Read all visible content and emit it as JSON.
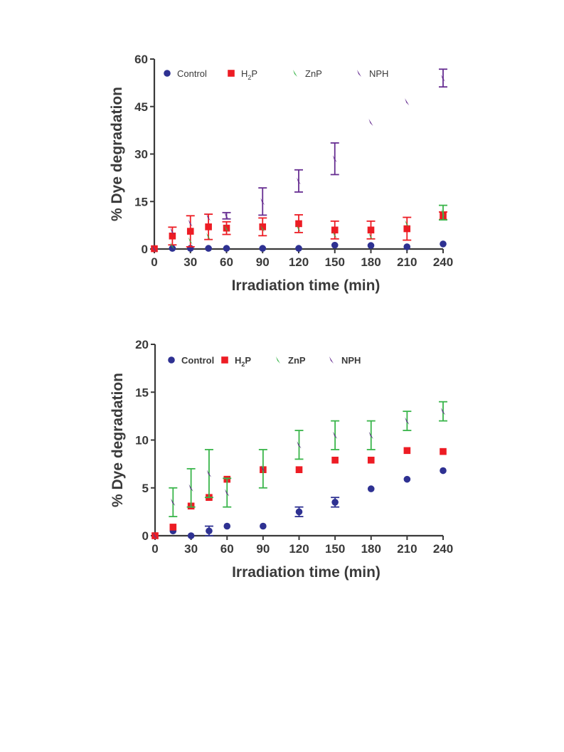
{
  "chart_data": [
    {
      "type": "scatter",
      "title": "",
      "xlabel": "Irradiation time (min)",
      "ylabel": "% Dye degradation",
      "xlim": [
        0,
        240
      ],
      "ylim": [
        0,
        60
      ],
      "x_ticks": [
        0,
        30,
        60,
        90,
        120,
        150,
        180,
        210,
        240
      ],
      "y_ticks": [
        0,
        15,
        30,
        45,
        60
      ],
      "grid": false,
      "legend_position": "top",
      "legend_bold": false,
      "series": [
        {
          "name": "Control",
          "marker": "circle",
          "color": "#2e3192",
          "x": [
            0,
            15,
            30,
            45,
            60,
            90,
            120,
            150,
            180,
            210,
            240
          ],
          "y": [
            0.1,
            0.2,
            0.2,
            0.2,
            0.2,
            0.2,
            0.2,
            1.2,
            1.1,
            0.7,
            1.6
          ],
          "err": [
            0,
            0,
            0,
            0,
            0,
            0,
            0,
            0,
            0,
            0,
            0
          ]
        },
        {
          "name": "H2P",
          "marker": "square",
          "color": "#ed1c24",
          "x": [
            0,
            15,
            30,
            45,
            60,
            90,
            120,
            150,
            180,
            210,
            240
          ],
          "y": [
            0.1,
            4.1,
            5.6,
            7.0,
            6.6,
            7.0,
            8.0,
            6.0,
            6.0,
            6.4,
            10.5
          ],
          "err": [
            0,
            2.8,
            4.9,
            4.0,
            2.0,
            2.8,
            2.8,
            2.8,
            2.8,
            3.6,
            1.2
          ]
        },
        {
          "name": "ZnP",
          "marker": "wedge",
          "color": "#39b54a",
          "x": [
            0,
            15,
            30,
            45,
            60,
            90,
            120,
            150,
            180,
            210,
            240
          ],
          "y": [
            0.1,
            1.0,
            2.6,
            4.0,
            6.5,
            6.5,
            6.5,
            4.5,
            4.0,
            8.0,
            11.5
          ],
          "err": [
            0,
            0,
            0,
            0,
            0,
            0,
            0,
            0,
            0,
            0,
            2.3
          ]
        },
        {
          "name": "NPH",
          "marker": "wedge",
          "color": "#662d91",
          "x": [
            0,
            15,
            30,
            45,
            60,
            90,
            120,
            150,
            180,
            210,
            240
          ],
          "y": [
            0.1,
            5.6,
            8.2,
            10.0,
            10.5,
            15.0,
            21.5,
            28.5,
            40.0,
            46.5,
            54.0
          ],
          "err": [
            0,
            0,
            0,
            0,
            1.0,
            4.3,
            3.5,
            5.0,
            0,
            0,
            2.8
          ]
        }
      ]
    },
    {
      "type": "scatter",
      "title": "",
      "xlabel": "Irradiation time (min)",
      "ylabel": "% Dye degradation",
      "xlim": [
        0,
        240
      ],
      "ylim": [
        0,
        20
      ],
      "x_ticks": [
        0,
        30,
        60,
        90,
        120,
        150,
        180,
        210,
        240
      ],
      "y_ticks": [
        0,
        5,
        10,
        15,
        20
      ],
      "grid": false,
      "legend_position": "top",
      "legend_bold": true,
      "series": [
        {
          "name": "Control",
          "marker": "circle",
          "color": "#2e3192",
          "x": [
            0,
            15,
            30,
            45,
            60,
            90,
            120,
            150,
            180,
            210,
            240
          ],
          "y": [
            0,
            0.5,
            0,
            0.5,
            1.0,
            1.0,
            2.5,
            3.5,
            4.9,
            5.9,
            6.8
          ],
          "err": [
            0,
            0,
            0,
            0.5,
            0,
            0,
            0.5,
            0.5,
            0,
            0,
            0
          ]
        },
        {
          "name": "H2P",
          "marker": "square",
          "color": "#ed1c24",
          "x": [
            0,
            15,
            30,
            45,
            60,
            90,
            120,
            150,
            180,
            210,
            240
          ],
          "y": [
            0,
            0.9,
            3.1,
            4.0,
            5.9,
            6.9,
            6.9,
            7.9,
            7.9,
            8.9,
            8.8
          ],
          "err": [
            0,
            0,
            0,
            0,
            0,
            0,
            0,
            0,
            0,
            0,
            0
          ]
        },
        {
          "name": "ZnP",
          "marker": "wedge",
          "color": "#39b54a",
          "x": [
            0,
            15,
            30,
            45,
            60,
            90,
            120,
            150,
            180,
            210,
            240
          ],
          "y": [
            0,
            3.5,
            5.0,
            6.5,
            4.5,
            7.0,
            9.5,
            10.5,
            10.5,
            12.0,
            13.0
          ],
          "err": [
            0,
            1.5,
            2.0,
            2.5,
            1.5,
            2.0,
            1.5,
            1.5,
            1.5,
            1.0,
            1.0
          ]
        },
        {
          "name": "NPH",
          "marker": "wedge",
          "color": "#662d91",
          "x": [
            0,
            15,
            30,
            45,
            60,
            90,
            120,
            150,
            180,
            210,
            240
          ],
          "y": [
            0,
            3.5,
            5.0,
            6.5,
            4.5,
            7.0,
            9.5,
            10.5,
            10.5,
            12.0,
            13.0
          ],
          "err": [
            0,
            0,
            0,
            0,
            0,
            0,
            0,
            0,
            0,
            0,
            0
          ]
        }
      ]
    }
  ]
}
